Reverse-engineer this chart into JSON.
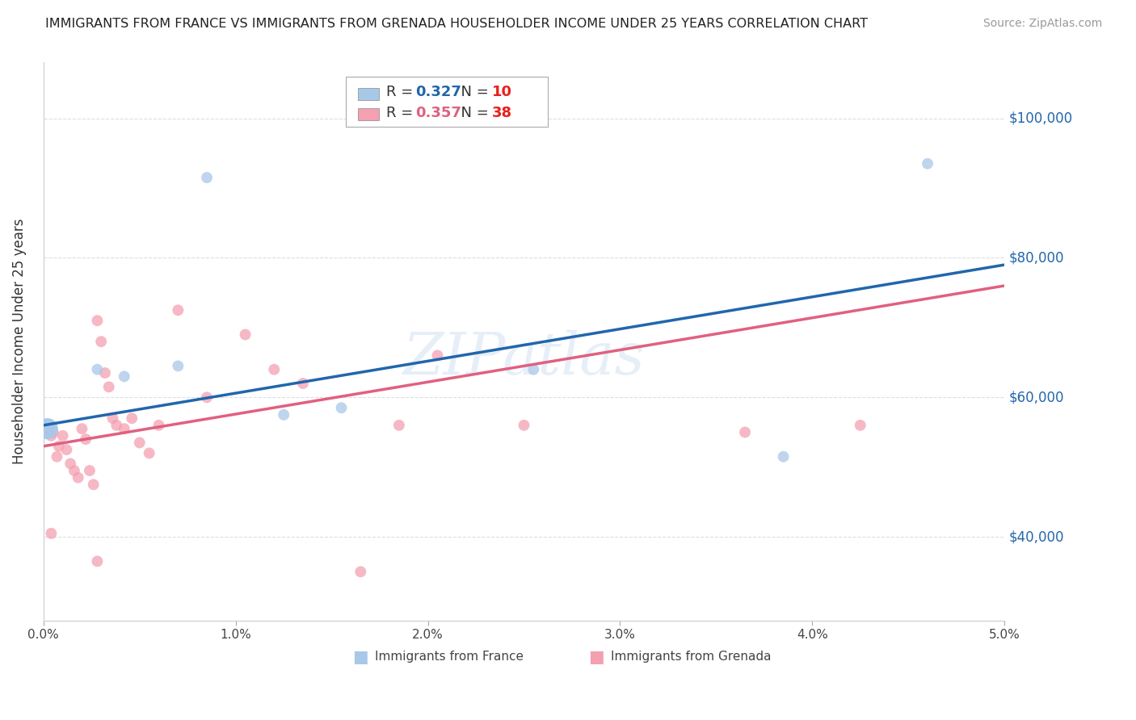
{
  "title": "IMMIGRANTS FROM FRANCE VS IMMIGRANTS FROM GRENADA HOUSEHOLDER INCOME UNDER 25 YEARS CORRELATION CHART",
  "source": "Source: ZipAtlas.com",
  "ylabel": "Householder Income Under 25 years",
  "xlabel_ticks": [
    "0.0%",
    "1.0%",
    "2.0%",
    "3.0%",
    "4.0%",
    "5.0%"
  ],
  "xlabel_vals": [
    0.0,
    1.0,
    2.0,
    3.0,
    4.0,
    5.0
  ],
  "ytick_labels": [
    "$40,000",
    "$60,000",
    "$80,000",
    "$100,000"
  ],
  "ytick_vals": [
    40000,
    60000,
    80000,
    100000
  ],
  "xlim": [
    0.0,
    5.0
  ],
  "ylim": [
    28000,
    108000
  ],
  "france_color": "#a8c8e8",
  "grenada_color": "#f4a0b0",
  "france_R": 0.327,
  "france_N": 10,
  "grenada_R": 0.357,
  "grenada_N": 38,
  "france_line_color": "#2166ac",
  "grenada_line_color": "#e06080",
  "legend_R_color": "#2166ac",
  "legend_N_color": "#e8201c",
  "watermark": "ZIPatlas",
  "france_x": [
    0.02,
    0.28,
    0.42,
    0.7,
    0.85,
    1.25,
    1.55,
    2.55,
    3.85,
    4.6
  ],
  "france_y": [
    55500,
    64000,
    63000,
    64500,
    91500,
    57500,
    58500,
    64000,
    51500,
    93500
  ],
  "france_size": [
    350,
    100,
    100,
    100,
    100,
    100,
    100,
    100,
    100,
    100
  ],
  "grenada_x": [
    0.02,
    0.04,
    0.05,
    0.07,
    0.08,
    0.1,
    0.12,
    0.14,
    0.16,
    0.18,
    0.2,
    0.22,
    0.24,
    0.26,
    0.28,
    0.3,
    0.32,
    0.34,
    0.36,
    0.38,
    0.42,
    0.46,
    0.5,
    0.55,
    0.6,
    0.7,
    0.85,
    1.05,
    1.2,
    1.35,
    1.65,
    1.85,
    2.05,
    2.5,
    3.65,
    4.25,
    0.04,
    0.28
  ],
  "grenada_y": [
    55500,
    54500,
    55000,
    51500,
    53000,
    54500,
    52500,
    50500,
    49500,
    48500,
    55500,
    54000,
    49500,
    47500,
    71000,
    68000,
    63500,
    61500,
    57000,
    56000,
    55500,
    57000,
    53500,
    52000,
    56000,
    72500,
    60000,
    69000,
    64000,
    62000,
    35000,
    56000,
    66000,
    56000,
    55000,
    56000,
    40500,
    36500
  ],
  "grenada_size": [
    100,
    100,
    100,
    100,
    100,
    100,
    100,
    100,
    100,
    100,
    100,
    100,
    100,
    100,
    100,
    100,
    100,
    100,
    100,
    100,
    100,
    100,
    100,
    100,
    100,
    100,
    100,
    100,
    100,
    100,
    100,
    100,
    100,
    100,
    100,
    100,
    100,
    100
  ],
  "background_color": "#ffffff",
  "grid_color": "#dddddd",
  "france_line_x0": 0.0,
  "france_line_y0": 56000,
  "france_line_x1": 5.0,
  "france_line_y1": 79000,
  "grenada_line_x0": 0.0,
  "grenada_line_y0": 53000,
  "grenada_line_x1": 5.0,
  "grenada_line_y1": 76000
}
